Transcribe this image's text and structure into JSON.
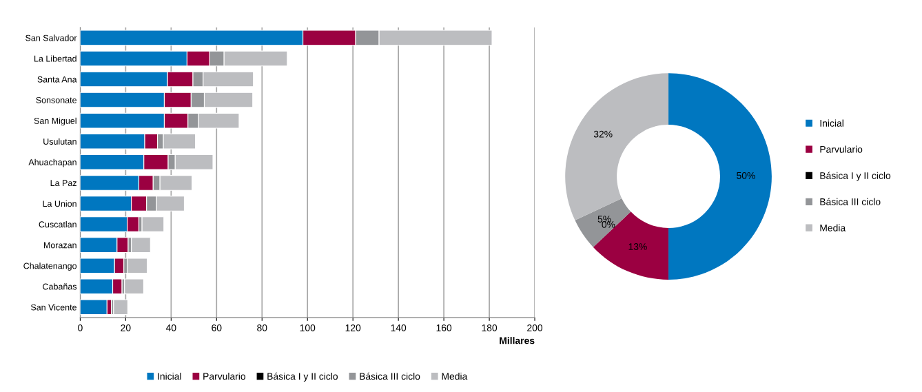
{
  "chart_data": [
    {
      "type": "bar",
      "orientation": "horizontal",
      "stacked": true,
      "xlabel": "Millares",
      "categories": [
        "San Salvador",
        "La Libertad",
        "Santa Ana",
        "Sonsonate",
        "San Miguel",
        "Usulutan",
        "Ahuachapan",
        "La Paz",
        "La Union",
        "Cuscatlan",
        "Morazan",
        "Chalatenango",
        "Cabañas",
        "San Vicente"
      ],
      "series": [
        {
          "name": "Inicial",
          "color": "#0077c0",
          "values": [
            98,
            47,
            38.4,
            37,
            37,
            28.4,
            28,
            25.8,
            22.5,
            20.7,
            16.2,
            15.1,
            14.3,
            11.8
          ]
        },
        {
          "name": "Parvulario",
          "color": "#9b0041",
          "values": [
            23.2,
            10,
            11.2,
            11.8,
            10.4,
            5.6,
            10.7,
            6.3,
            6.7,
            5.1,
            4.9,
            4.1,
            4.1,
            1.9
          ]
        },
        {
          "name": "Básica I y II ciclo",
          "color": "#000000",
          "values": [
            0,
            0,
            0,
            0,
            0,
            0,
            0,
            0,
            0,
            0,
            0,
            0,
            0,
            0
          ]
        },
        {
          "name": "Básica III ciclo",
          "color": "#939598",
          "values": [
            10.3,
            6.3,
            4.5,
            5.8,
            4.7,
            2.6,
            3.1,
            3,
            4.4,
            1.4,
            1.4,
            1.5,
            1.1,
            1
          ]
        },
        {
          "name": "Media",
          "color": "#bcbdc0",
          "values": [
            49.7,
            27.8,
            22.1,
            21.3,
            17.8,
            14.1,
            16.6,
            14.1,
            12.2,
            9.6,
            8.4,
            8.8,
            8.4,
            6.2
          ]
        }
      ],
      "xlim": [
        0,
        200
      ],
      "xticks": [
        0,
        20,
        40,
        60,
        80,
        100,
        120,
        140,
        160,
        180,
        200
      ],
      "grid": "x",
      "legend": "bottom"
    },
    {
      "type": "donut",
      "categories": [
        "Inicial",
        "Parvulario",
        "Básica I y II ciclo",
        "Básica III ciclo",
        "Media"
      ],
      "values": [
        50,
        13,
        0,
        5,
        32
      ],
      "colors": [
        "#0077c0",
        "#9b0041",
        "#000000",
        "#939598",
        "#bcbdc0"
      ],
      "value_labels": [
        "50%",
        "13%",
        "0%",
        "5%",
        "32%"
      ],
      "legend": "right"
    }
  ]
}
